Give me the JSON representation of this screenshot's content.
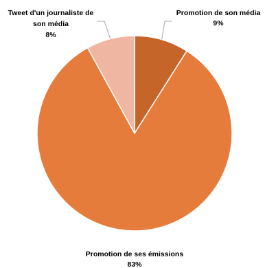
{
  "chart_data": {
    "type": "pie",
    "slices": [
      {
        "label_lines": [
          "Promotion de son média"
        ],
        "value_label": "9%",
        "value": 9,
        "color": "#c5652a",
        "bold": false
      },
      {
        "label_lines": [
          "Promotion de ses émissions"
        ],
        "value_label": "83%",
        "value": 83,
        "color": "#e57c3c",
        "bold": false
      },
      {
        "label_lines": [
          "Tweet d'un journaliste de",
          "son média"
        ],
        "value_label": "8%",
        "value": 8,
        "color": "#efb6a2",
        "bold": true
      }
    ],
    "start_angle": "12 o'clock",
    "direction": "clockwise",
    "slice_border_color": "#ffffff",
    "leader_line_color": "#a6a6a6",
    "legend": "none"
  }
}
